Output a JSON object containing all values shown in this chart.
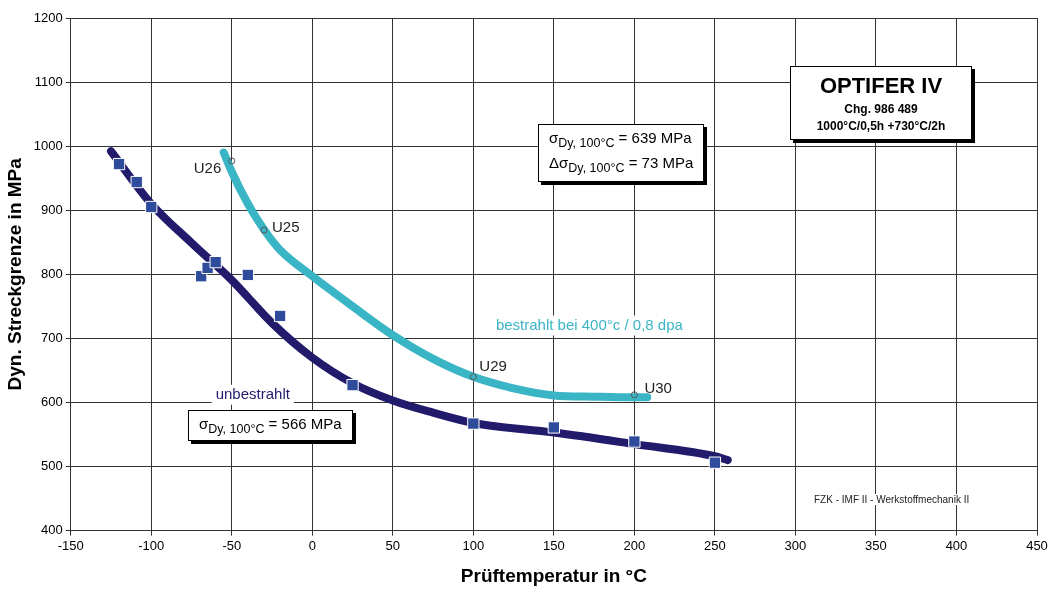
{
  "chart_data": {
    "type": "line",
    "title": "OPTIFER IV",
    "subtitle": "Chg. 986 489",
    "xlabel": "Prüftemperatur in °C",
    "ylabel": "Dyn. Streckgrenze in MPa",
    "xlim": [
      -150,
      450
    ],
    "xticks": [
      -150,
      -100,
      -50,
      0,
      50,
      100,
      150,
      200,
      250,
      300,
      350,
      400,
      450
    ],
    "ylim": [
      400,
      1200
    ],
    "yticks": [
      400,
      500,
      600,
      700,
      800,
      900,
      1000,
      1100,
      1200
    ],
    "grid": true,
    "legend": false,
    "series": [
      {
        "name": "unbestrahlt",
        "color": "#221a6b",
        "marker": "none",
        "x": [
          -125,
          -100,
          -75,
          -50,
          -25,
          0,
          25,
          50,
          75,
          100,
          150,
          200,
          250,
          258
        ],
        "values": [
          992,
          910,
          849,
          791,
          724,
          670,
          630,
          603,
          584,
          568,
          553,
          535,
          516,
          510
        ]
      },
      {
        "type": "scatter",
        "color": "#2f4c9c",
        "marker": "square",
        "x": [
          -120,
          -109,
          -100,
          -69,
          -65,
          -60,
          -40,
          -20,
          25,
          100,
          150,
          200,
          250
        ],
        "values": [
          972,
          944,
          905,
          797,
          810,
          819,
          799,
          735,
          627,
          567,
          561,
          539,
          506
        ]
      },
      {
        "name": "bestrahlt bei 400°c / 0,8 dpa",
        "color": "#3ab5c5",
        "marker": "none",
        "x": [
          -55,
          -50,
          -40,
          -30,
          -20,
          0,
          25,
          50,
          75,
          100,
          125,
          150,
          175,
          200,
          208
        ],
        "values": [
          990,
          960,
          910,
          870,
          838,
          797,
          750,
          705,
          668,
          640,
          622,
          611,
          609,
          608,
          608
        ]
      },
      {
        "type": "scatter",
        "color": "#555555",
        "marker": "circle",
        "x": [
          -50,
          -30,
          100,
          200
        ],
        "values": [
          977,
          869,
          640,
          612
        ]
      }
    ],
    "annotations": [
      "σ$_{Dy, 100°C}$ = 639 MPa",
      "Δσ$_{Dy, 100°C}$ = 73 MPa",
      "σ$_{Dy, 100°C}$ = 566 MPa",
      "1000°C/0,5h +730°C/2h",
      "FZK - IMF II - Werkstoffmechanik II",
      {
        "text": "U26",
        "x": -50,
        "y": 977
      },
      {
        "text": "U25",
        "x": -30,
        "y": 869
      },
      {
        "text": "U29",
        "x": 100,
        "y": 640
      },
      {
        "text": "U30",
        "x": 200,
        "y": 612
      }
    ]
  }
}
